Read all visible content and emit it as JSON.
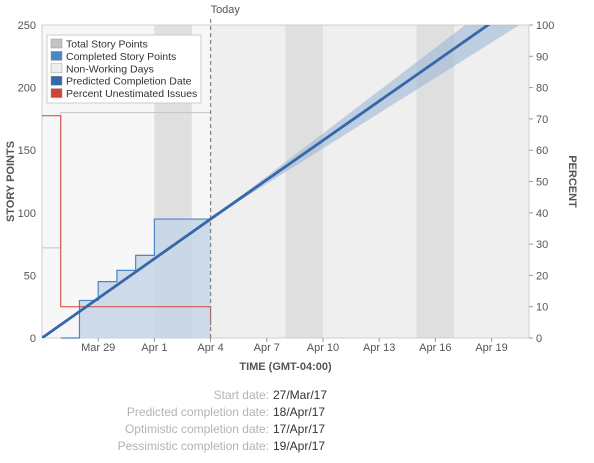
{
  "chart_data": {
    "type": "line",
    "today_label": "Today",
    "xlabel": "TIME (GMT-04:00)",
    "ylabel": "STORY POINTS",
    "y2label": "PERCENT",
    "x_range": [
      "2017-03-26",
      "2017-04-21"
    ],
    "ylim": [
      0,
      250
    ],
    "y2lim": [
      0,
      100
    ],
    "x_ticks": [
      "Mar 29",
      "Apr 1",
      "Apr 4",
      "Apr 7",
      "Apr 10",
      "Apr 13",
      "Apr 16",
      "Apr 19"
    ],
    "y_ticks": [
      0,
      50,
      100,
      150,
      200,
      250
    ],
    "y2_ticks": [
      0,
      10,
      20,
      30,
      40,
      50,
      60,
      70,
      80,
      90,
      100
    ],
    "today": "2017-04-04",
    "non_working_days": [
      [
        "2017-04-01",
        "2017-04-03"
      ],
      [
        "2017-04-08",
        "2017-04-10"
      ],
      [
        "2017-04-15",
        "2017-04-17"
      ]
    ],
    "legend": [
      {
        "label": "Total Story Points",
        "color": "#c4c4c4"
      },
      {
        "label": "Completed Story Points",
        "color": "#4a86c8"
      },
      {
        "label": "Non-Working Days",
        "color": "#eeeeee"
      },
      {
        "label": "Predicted Completion Date",
        "color": "#3468a8"
      },
      {
        "label": "Percent Unestimated Issues",
        "color": "#d04437"
      }
    ],
    "series": [
      {
        "name": "Total Story Points",
        "color": "#c4c4c4",
        "points": [
          [
            "2017-03-26",
            72
          ],
          [
            "2017-03-27",
            72
          ],
          [
            "2017-03-27",
            150
          ],
          [
            "2017-03-27",
            180
          ],
          [
            "2017-04-04",
            180
          ]
        ]
      },
      {
        "name": "Completed Story Points",
        "color": "#4a86c8",
        "points": [
          [
            "2017-03-27",
            0
          ],
          [
            "2017-03-28",
            0
          ],
          [
            "2017-03-28",
            3
          ],
          [
            "2017-03-28",
            3
          ],
          [
            "2017-03-28",
            10
          ],
          [
            "2017-03-28",
            16
          ],
          [
            "2017-03-28",
            25
          ],
          [
            "2017-03-28",
            30
          ],
          [
            "2017-03-29",
            30
          ],
          [
            "2017-03-29",
            37
          ],
          [
            "2017-03-29",
            37
          ],
          [
            "2017-03-29",
            45
          ],
          [
            "2017-03-30",
            45
          ],
          [
            "2017-03-30",
            54
          ],
          [
            "2017-03-31",
            54
          ],
          [
            "2017-03-31",
            66
          ],
          [
            "2017-04-01",
            66
          ],
          [
            "2017-04-01",
            80
          ],
          [
            "2017-04-01",
            95
          ],
          [
            "2017-04-04",
            95
          ]
        ]
      },
      {
        "name": "Percent Unestimated Issues",
        "color": "#d04437",
        "axis": "right",
        "points": [
          [
            "2017-03-26",
            71
          ],
          [
            "2017-03-27",
            71
          ],
          [
            "2017-03-27",
            59
          ],
          [
            "2017-03-27",
            10
          ],
          [
            "2017-04-04",
            10
          ],
          [
            "2017-04-04",
            4
          ]
        ]
      },
      {
        "name": "Predicted Completion Date",
        "color": "#3468a8",
        "points": [
          [
            "2017-03-26",
            0
          ],
          [
            "2017-04-04",
            95
          ],
          [
            "2017-04-19",
            252
          ]
        ],
        "band": [
          [
            "2017-04-04",
            95,
            95
          ],
          [
            "2017-04-19",
            236,
            266
          ]
        ]
      }
    ]
  },
  "dates": [
    {
      "label": "Start date:",
      "value": "27/Mar/17"
    },
    {
      "label": "Predicted completion date:",
      "value": "18/Apr/17"
    },
    {
      "label": "Optimistic completion date:",
      "value": "17/Apr/17"
    },
    {
      "label": "Pessimistic completion date:",
      "value": "19/Apr/17"
    }
  ]
}
